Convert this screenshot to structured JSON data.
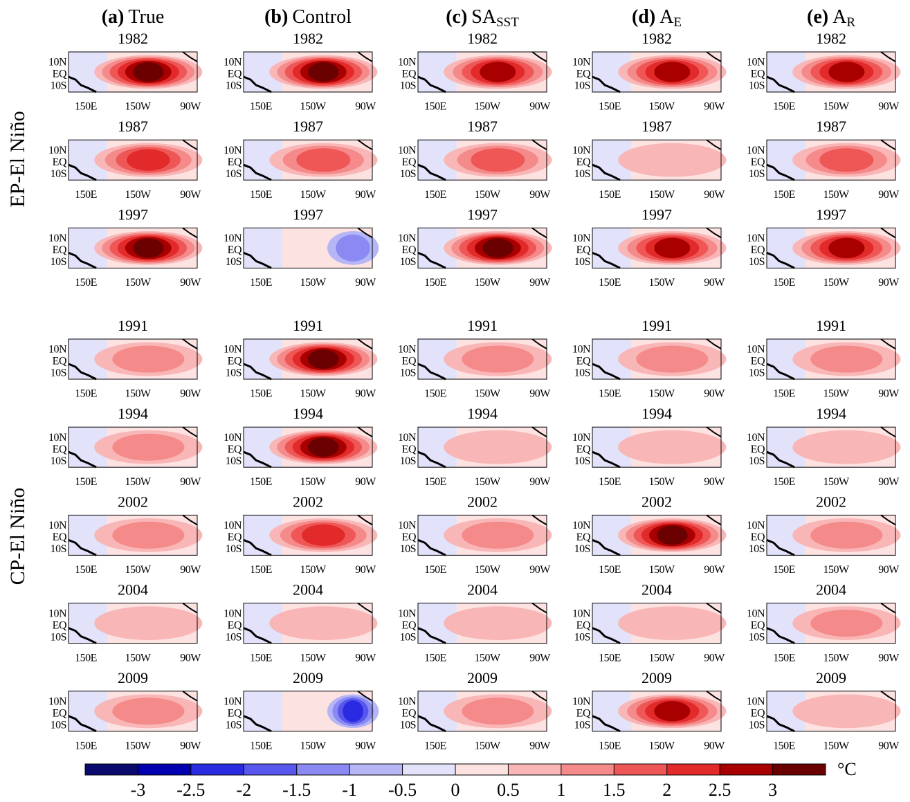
{
  "columns": [
    {
      "tag": "(a)",
      "name": "True"
    },
    {
      "tag": "(b)",
      "name": "Control"
    },
    {
      "tag": "(c)",
      "name": "SA",
      "sub": "SST"
    },
    {
      "tag": "(d)",
      "name": "A",
      "sub": "E"
    },
    {
      "tag": "(e)",
      "name": "A",
      "sub": "R"
    }
  ],
  "lat_labels": [
    "10N",
    "EQ",
    "10S"
  ],
  "lon_labels": [
    "150E",
    "150W",
    "90W"
  ],
  "groups": [
    {
      "label": "EP-El Niño",
      "rows": [
        {
          "year": "1982",
          "peaks": [
            3,
            3,
            2.5,
            2.5,
            2.5
          ]
        },
        {
          "year": "1987",
          "peaks": [
            2,
            1.5,
            1.5,
            0.5,
            1.5
          ]
        },
        {
          "year": "1997",
          "peaks": [
            3,
            -1,
            3,
            2.5,
            2.5
          ]
        }
      ]
    },
    {
      "label": "CP-El Niño",
      "rows": [
        {
          "year": "1991",
          "peaks": [
            1,
            3,
            1,
            1,
            1
          ]
        },
        {
          "year": "1994",
          "peaks": [
            1,
            3,
            0.5,
            0.5,
            0.5
          ]
        },
        {
          "year": "2002",
          "peaks": [
            1,
            2,
            1,
            3,
            1
          ]
        },
        {
          "year": "2004",
          "peaks": [
            0.5,
            0.5,
            0.5,
            0.5,
            1
          ]
        },
        {
          "year": "2009",
          "peaks": [
            1,
            -2,
            1,
            2.5,
            0.5
          ]
        }
      ]
    }
  ],
  "colorbar": {
    "unit": "°C",
    "lim": [
      -3.5,
      3.5
    ],
    "ticks": [
      -3,
      -2.5,
      -2,
      -1.5,
      -1,
      -0.5,
      0,
      0.5,
      1,
      1.5,
      2,
      2.5,
      3
    ],
    "colors": [
      "#0a0a6e",
      "#0000b0",
      "#2a2ae0",
      "#5757ee",
      "#8a8af2",
      "#b6b6f6",
      "#e2e2fb",
      "#fde2e2",
      "#f9b6b6",
      "#f48a8a",
      "#ef5757",
      "#e22a2a",
      "#a80000",
      "#6a0000"
    ]
  }
}
